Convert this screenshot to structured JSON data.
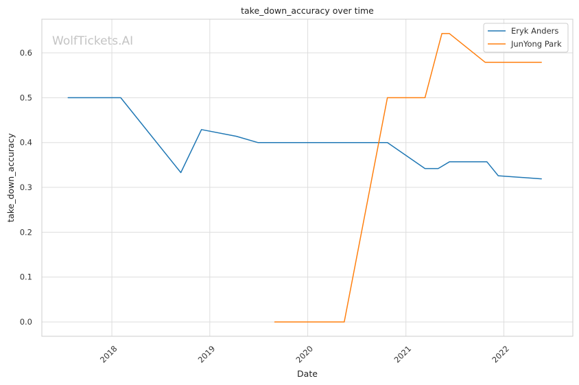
{
  "watermark": "WolfTickets.AI",
  "chart_data": {
    "type": "line",
    "title": "take_down_accuracy over time",
    "xlabel": "Date",
    "ylabel": "take_down_accuracy",
    "x_axis": "date",
    "xlim": [
      "2017-04-15",
      "2022-09-15"
    ],
    "ylim": [
      -0.032,
      0.675
    ],
    "x_ticks": [
      {
        "date": "2018-01-01",
        "label": "2018"
      },
      {
        "date": "2019-01-01",
        "label": "2019"
      },
      {
        "date": "2020-01-01",
        "label": "2020"
      },
      {
        "date": "2021-01-01",
        "label": "2021"
      },
      {
        "date": "2022-01-01",
        "label": "2022"
      }
    ],
    "y_ticks": [
      {
        "value": 0.0,
        "label": "0.0"
      },
      {
        "value": 0.1,
        "label": "0.1"
      },
      {
        "value": 0.2,
        "label": "0.2"
      },
      {
        "value": 0.3,
        "label": "0.3"
      },
      {
        "value": 0.4,
        "label": "0.4"
      },
      {
        "value": 0.5,
        "label": "0.5"
      },
      {
        "value": 0.6,
        "label": "0.6"
      }
    ],
    "grid": true,
    "legend_position": "top-right",
    "series": [
      {
        "name": "Eryk Anders",
        "color": "#1f77b4",
        "points": [
          {
            "x": "2017-07-22",
            "y": 0.5
          },
          {
            "x": "2018-02-03",
            "y": 0.5
          },
          {
            "x": "2018-09-15",
            "y": 0.333
          },
          {
            "x": "2018-12-01",
            "y": 0.429
          },
          {
            "x": "2019-04-10",
            "y": 0.414
          },
          {
            "x": "2019-06-29",
            "y": 0.4
          },
          {
            "x": "2020-10-24",
            "y": 0.4
          },
          {
            "x": "2021-03-13",
            "y": 0.342
          },
          {
            "x": "2021-05-01",
            "y": 0.342
          },
          {
            "x": "2021-06-12",
            "y": 0.357
          },
          {
            "x": "2021-10-30",
            "y": 0.357
          },
          {
            "x": "2021-12-11",
            "y": 0.326
          },
          {
            "x": "2022-05-21",
            "y": 0.319
          }
        ]
      },
      {
        "name": "JunYong Park",
        "color": "#ff7f0e",
        "points": [
          {
            "x": "2019-08-31",
            "y": 0.0
          },
          {
            "x": "2020-05-16",
            "y": 0.0
          },
          {
            "x": "2020-10-24",
            "y": 0.5
          },
          {
            "x": "2021-03-13",
            "y": 0.5
          },
          {
            "x": "2021-05-15",
            "y": 0.643
          },
          {
            "x": "2021-06-12",
            "y": 0.643
          },
          {
            "x": "2021-10-23",
            "y": 0.579
          },
          {
            "x": "2022-05-21",
            "y": 0.579
          }
        ]
      }
    ]
  }
}
